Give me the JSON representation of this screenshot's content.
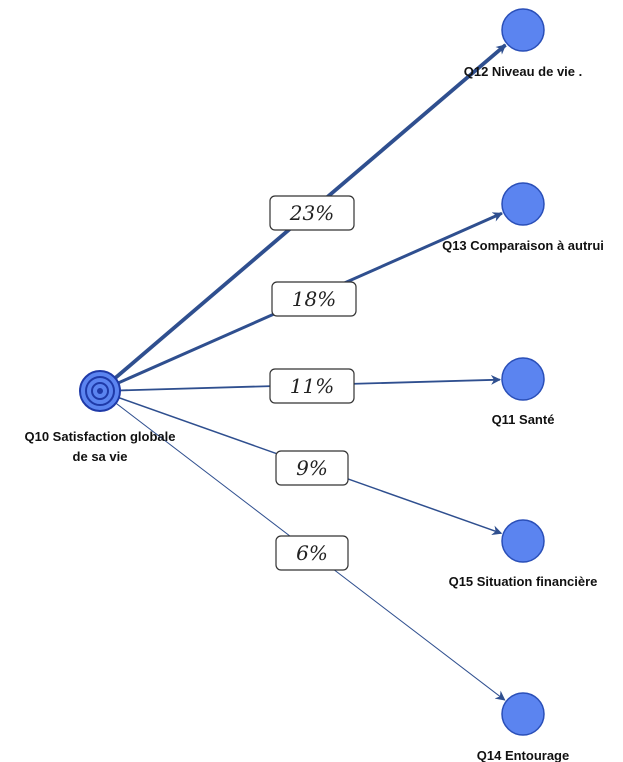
{
  "source": {
    "label_lines": [
      "Q10 Satisfaction globale",
      "de sa vie"
    ],
    "color": "#5b84f0",
    "ring_color": "#1f3aa8"
  },
  "targets": [
    {
      "id": "q12",
      "label": "Q12 Niveau de vie .",
      "percent": "23%",
      "weight": 23
    },
    {
      "id": "q13",
      "label": "Q13 Comparaison à autrui",
      "percent": "18%",
      "weight": 18
    },
    {
      "id": "q11",
      "label": "Q11 Santé",
      "percent": "11%",
      "weight": 11
    },
    {
      "id": "q15",
      "label": "Q15 Situation financière",
      "percent": "9%",
      "weight": 9
    },
    {
      "id": "q14",
      "label": "Q14 Entourage",
      "percent": "6%",
      "weight": 6
    }
  ],
  "colors": {
    "edge": "#2f4f8f",
    "node_fill": "#5b84f0",
    "node_stroke": "#2a4fb8",
    "label_box_border": "#333333"
  }
}
